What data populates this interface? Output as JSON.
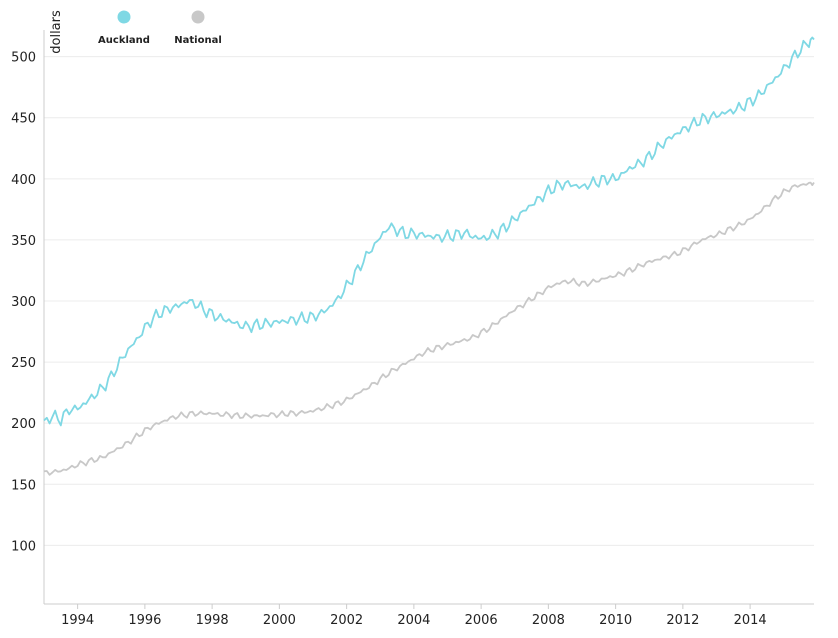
{
  "chart_data": {
    "type": "line",
    "ylabel": "dollars",
    "xlabel": "",
    "title": "",
    "xlim": [
      1993.0,
      2015.9
    ],
    "ylim": [
      52,
      530
    ],
    "y_ticks": [
      100,
      150,
      200,
      250,
      300,
      350,
      400,
      450,
      500
    ],
    "x_ticks": [
      1994,
      1996,
      1998,
      2000,
      2002,
      2004,
      2006,
      2008,
      2010,
      2012,
      2014
    ],
    "grid": true,
    "legend_position": "top-left",
    "series": [
      {
        "name": "Auckland",
        "color": "#7fd8e4",
        "points": [
          [
            1993.0,
            200
          ],
          [
            1993.25,
            206
          ],
          [
            1993.5,
            203
          ],
          [
            1993.75,
            211
          ],
          [
            1994.0,
            212
          ],
          [
            1994.25,
            217
          ],
          [
            1994.5,
            223
          ],
          [
            1994.75,
            229
          ],
          [
            1995.0,
            238
          ],
          [
            1995.25,
            250
          ],
          [
            1995.5,
            260
          ],
          [
            1995.75,
            268
          ],
          [
            1996.0,
            278
          ],
          [
            1996.25,
            286
          ],
          [
            1996.5,
            291
          ],
          [
            1996.75,
            294
          ],
          [
            1997.0,
            296
          ],
          [
            1997.25,
            300
          ],
          [
            1997.5,
            298
          ],
          [
            1997.75,
            293
          ],
          [
            1998.0,
            289
          ],
          [
            1998.25,
            286
          ],
          [
            1998.5,
            284
          ],
          [
            1998.75,
            281
          ],
          [
            1999.0,
            279
          ],
          [
            1999.25,
            280
          ],
          [
            1999.5,
            281
          ],
          [
            1999.75,
            282
          ],
          [
            2000.0,
            283
          ],
          [
            2000.25,
            284
          ],
          [
            2000.5,
            285
          ],
          [
            2000.75,
            286
          ],
          [
            2001.0,
            287
          ],
          [
            2001.25,
            290
          ],
          [
            2001.5,
            295
          ],
          [
            2001.75,
            302
          ],
          [
            2002.0,
            312
          ],
          [
            2002.25,
            322
          ],
          [
            2002.5,
            333
          ],
          [
            2002.75,
            343
          ],
          [
            2003.0,
            352
          ],
          [
            2003.25,
            361
          ],
          [
            2003.5,
            358
          ],
          [
            2003.75,
            355
          ],
          [
            2004.0,
            355
          ],
          [
            2004.25,
            354
          ],
          [
            2004.5,
            353
          ],
          [
            2004.75,
            352
          ],
          [
            2005.0,
            353
          ],
          [
            2005.25,
            354
          ],
          [
            2005.5,
            356
          ],
          [
            2005.75,
            353
          ],
          [
            2006.0,
            351
          ],
          [
            2006.25,
            353
          ],
          [
            2006.5,
            356
          ],
          [
            2006.75,
            361
          ],
          [
            2007.0,
            367
          ],
          [
            2007.25,
            373
          ],
          [
            2007.5,
            379
          ],
          [
            2007.75,
            384
          ],
          [
            2008.0,
            390
          ],
          [
            2008.25,
            394
          ],
          [
            2008.5,
            396
          ],
          [
            2008.75,
            395
          ],
          [
            2009.0,
            393
          ],
          [
            2009.25,
            396
          ],
          [
            2009.5,
            398
          ],
          [
            2009.75,
            400
          ],
          [
            2010.0,
            400
          ],
          [
            2010.25,
            405
          ],
          [
            2010.5,
            410
          ],
          [
            2010.75,
            413
          ],
          [
            2011.0,
            418
          ],
          [
            2011.25,
            425
          ],
          [
            2011.5,
            431
          ],
          [
            2011.75,
            436
          ],
          [
            2012.0,
            440
          ],
          [
            2012.25,
            444
          ],
          [
            2012.5,
            448
          ],
          [
            2012.75,
            450
          ],
          [
            2013.0,
            452
          ],
          [
            2013.25,
            454
          ],
          [
            2013.5,
            456
          ],
          [
            2013.75,
            459
          ],
          [
            2014.0,
            463
          ],
          [
            2014.25,
            468
          ],
          [
            2014.5,
            475
          ],
          [
            2014.75,
            482
          ],
          [
            2015.0,
            490
          ],
          [
            2015.25,
            498
          ],
          [
            2015.5,
            506
          ],
          [
            2015.75,
            512
          ],
          [
            2015.9,
            514
          ]
        ]
      },
      {
        "name": "National",
        "color": "#c8c8c8",
        "points": [
          [
            1993.0,
            159
          ],
          [
            1993.25,
            160
          ],
          [
            1993.5,
            161
          ],
          [
            1993.75,
            163
          ],
          [
            1994.0,
            166
          ],
          [
            1994.25,
            168
          ],
          [
            1994.5,
            170
          ],
          [
            1994.75,
            172
          ],
          [
            1995.0,
            176
          ],
          [
            1995.25,
            180
          ],
          [
            1995.5,
            184
          ],
          [
            1995.75,
            189
          ],
          [
            1996.0,
            194
          ],
          [
            1996.25,
            198
          ],
          [
            1996.5,
            201
          ],
          [
            1996.75,
            204
          ],
          [
            1997.0,
            206
          ],
          [
            1997.25,
            207
          ],
          [
            1997.5,
            208
          ],
          [
            1997.75,
            208
          ],
          [
            1998.0,
            208
          ],
          [
            1998.25,
            207
          ],
          [
            1998.5,
            207
          ],
          [
            1998.75,
            206
          ],
          [
            1999.0,
            206
          ],
          [
            1999.25,
            206
          ],
          [
            1999.5,
            206
          ],
          [
            1999.75,
            207
          ],
          [
            2000.0,
            207
          ],
          [
            2000.25,
            208
          ],
          [
            2000.5,
            208
          ],
          [
            2000.75,
            209
          ],
          [
            2001.0,
            210
          ],
          [
            2001.25,
            212
          ],
          [
            2001.5,
            214
          ],
          [
            2001.75,
            216
          ],
          [
            2002.0,
            219
          ],
          [
            2002.25,
            223
          ],
          [
            2002.5,
            227
          ],
          [
            2002.75,
            231
          ],
          [
            2003.0,
            236
          ],
          [
            2003.25,
            241
          ],
          [
            2003.5,
            245
          ],
          [
            2003.75,
            249
          ],
          [
            2004.0,
            253
          ],
          [
            2004.25,
            257
          ],
          [
            2004.5,
            260
          ],
          [
            2004.75,
            262
          ],
          [
            2005.0,
            264
          ],
          [
            2005.25,
            266
          ],
          [
            2005.5,
            268
          ],
          [
            2005.75,
            270
          ],
          [
            2006.0,
            274
          ],
          [
            2006.25,
            278
          ],
          [
            2006.5,
            283
          ],
          [
            2006.75,
            288
          ],
          [
            2007.0,
            293
          ],
          [
            2007.25,
            297
          ],
          [
            2007.5,
            302
          ],
          [
            2007.75,
            306
          ],
          [
            2008.0,
            311
          ],
          [
            2008.25,
            314
          ],
          [
            2008.5,
            316
          ],
          [
            2008.75,
            316
          ],
          [
            2009.0,
            314
          ],
          [
            2009.25,
            315
          ],
          [
            2009.5,
            317
          ],
          [
            2009.75,
            319
          ],
          [
            2010.0,
            321
          ],
          [
            2010.25,
            323
          ],
          [
            2010.5,
            326
          ],
          [
            2010.75,
            329
          ],
          [
            2011.0,
            332
          ],
          [
            2011.25,
            334
          ],
          [
            2011.5,
            336
          ],
          [
            2011.75,
            338
          ],
          [
            2012.0,
            341
          ],
          [
            2012.25,
            345
          ],
          [
            2012.5,
            349
          ],
          [
            2012.75,
            352
          ],
          [
            2013.0,
            354
          ],
          [
            2013.25,
            357
          ],
          [
            2013.5,
            360
          ],
          [
            2013.75,
            363
          ],
          [
            2014.0,
            367
          ],
          [
            2014.25,
            372
          ],
          [
            2014.5,
            378
          ],
          [
            2014.75,
            384
          ],
          [
            2015.0,
            389
          ],
          [
            2015.25,
            393
          ],
          [
            2015.5,
            395
          ],
          [
            2015.75,
            396
          ],
          [
            2015.9,
            397
          ]
        ]
      }
    ]
  }
}
